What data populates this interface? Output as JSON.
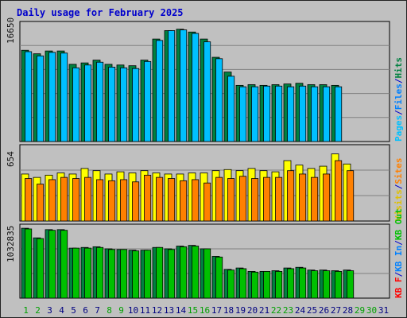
{
  "chart_data": {
    "type": "bar",
    "title": "Daily usage for February 2025",
    "categories": [
      "1",
      "2",
      "3",
      "4",
      "5",
      "6",
      "7",
      "8",
      "9",
      "10",
      "11",
      "12",
      "13",
      "14",
      "15",
      "16",
      "17",
      "18",
      "19",
      "20",
      "21",
      "22",
      "23",
      "24",
      "25",
      "26",
      "27",
      "28",
      "29",
      "30",
      "31"
    ],
    "weekend_days": [
      "1",
      "2",
      "8",
      "9",
      "15",
      "16",
      "22",
      "23",
      "29",
      "30"
    ],
    "panels": [
      {
        "name": "hits-files-pages",
        "ymax_label": "16650",
        "ylim": [
          0,
          16650
        ],
        "legend": [
          "Pages",
          "Files",
          "Hits"
        ],
        "series": [
          {
            "name": "Hits",
            "color": "#008040",
            "values": [
              13000,
              12500,
              12900,
              12900,
              11000,
              11200,
              11600,
              11000,
              10900,
              10800,
              11600,
              14600,
              15800,
              16000,
              15600,
              14600,
              12000,
              9900,
              8000,
              8100,
              8000,
              8100,
              8200,
              8300,
              8100,
              8100,
              8000,
              null,
              null,
              null,
              null
            ]
          },
          {
            "name": "Files",
            "color": "#00c0ff",
            "values": [
              12800,
              12200,
              12700,
              12600,
              10500,
              10900,
              11300,
              10600,
              10500,
              10400,
              11400,
              14400,
              15800,
              15900,
              15400,
              14200,
              11800,
              9300,
              7800,
              7800,
              7900,
              7900,
              7800,
              7900,
              7800,
              7800,
              7800,
              null,
              null,
              null,
              null
            ]
          },
          {
            "name": "Pages",
            "color": "#00c0ff",
            "values": [
              null,
              null,
              null,
              null,
              null,
              null,
              null,
              null,
              null,
              null,
              null,
              null,
              null,
              null,
              null,
              null,
              null,
              null,
              null,
              null,
              null,
              null,
              null,
              null,
              null,
              null,
              null,
              null,
              null,
              null,
              null
            ]
          }
        ]
      },
      {
        "name": "visits-sites",
        "ymax_label": "654",
        "ylim": [
          0,
          654
        ],
        "legend": [
          "Visits",
          "Sites"
        ],
        "series": [
          {
            "name": "Visits",
            "color": "#ffff00",
            "values": [
              420,
              390,
              410,
              430,
              420,
              470,
              450,
              420,
              440,
              430,
              450,
              430,
              420,
              420,
              430,
              430,
              450,
              460,
              450,
              470,
              450,
              440,
              540,
              500,
              470,
              490,
              600,
              510,
              null,
              null,
              null
            ]
          },
          {
            "name": "Sites",
            "color": "#ff8000",
            "values": [
              380,
              330,
              370,
              390,
              380,
              390,
              370,
              360,
              370,
              350,
              410,
              390,
              380,
              360,
              370,
              340,
              390,
              380,
              400,
              380,
              390,
              390,
              450,
              420,
              390,
              420,
              540,
              450,
              null,
              null,
              null
            ]
          }
        ]
      },
      {
        "name": "kbytes",
        "ymax_label": "1032835",
        "ylim": [
          0,
          1032835
        ],
        "legend": [
          "KB F",
          "KB In",
          "KB Out"
        ],
        "series": [
          {
            "name": "KB F",
            "color": "#008040",
            "values": [
              1020000,
              880000,
              1000000,
              1000000,
              730000,
              740000,
              750000,
              720000,
              710000,
              700000,
              700000,
              740000,
              720000,
              760000,
              770000,
              720000,
              610000,
              420000,
              440000,
              390000,
              390000,
              400000,
              440000,
              450000,
              410000,
              410000,
              400000,
              410000,
              null,
              null,
              null
            ]
          },
          {
            "name": "KB Out",
            "color": "#00c000",
            "values": [
              1010000,
              870000,
              990000,
              990000,
              730000,
              730000,
              740000,
              710000,
              710000,
              690000,
              700000,
              740000,
              710000,
              750000,
              760000,
              720000,
              600000,
              410000,
              430000,
              380000,
              390000,
              390000,
              430000,
              440000,
              400000,
              400000,
              390000,
              400000,
              null,
              null,
              null
            ]
          }
        ]
      }
    ],
    "right_legends": [
      [
        {
          "text": "Pages",
          "color": "#00c0ff"
        },
        {
          "text": "/",
          "color": "#0000cc"
        },
        {
          "text": "Files",
          "color": "#0080ff"
        },
        {
          "text": "/",
          "color": "#0000cc"
        },
        {
          "text": "Hits",
          "color": "#008040"
        }
      ],
      [
        {
          "text": "Visits",
          "color": "#e0c000"
        },
        {
          "text": "/",
          "color": "#0000cc"
        },
        {
          "text": "Sites",
          "color": "#ff8000"
        }
      ],
      [
        {
          "text": "KB F",
          "color": "#ff0000"
        },
        {
          "text": "/",
          "color": "#0000cc"
        },
        {
          "text": "KB In",
          "color": "#0080ff"
        },
        {
          "text": "/",
          "color": "#0000cc"
        },
        {
          "text": "KB Out",
          "color": "#00c000"
        }
      ]
    ],
    "colors": {
      "weekday_label": "#000080",
      "weekend_label": "#00a000",
      "gridline": "#808080",
      "panel_bg": "#c0c0c0"
    }
  }
}
